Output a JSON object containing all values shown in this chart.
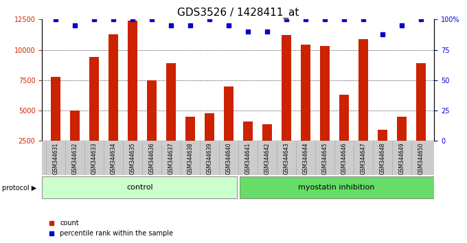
{
  "title": "GDS3526 / 1428411_at",
  "samples": [
    "GSM344631",
    "GSM344632",
    "GSM344633",
    "GSM344634",
    "GSM344635",
    "GSM344636",
    "GSM344637",
    "GSM344638",
    "GSM344639",
    "GSM344640",
    "GSM344641",
    "GSM344642",
    "GSM344643",
    "GSM344644",
    "GSM344645",
    "GSM344646",
    "GSM344647",
    "GSM344648",
    "GSM344649",
    "GSM344650"
  ],
  "bar_values": [
    7800,
    5000,
    9400,
    11300,
    12400,
    7500,
    8900,
    4500,
    4800,
    7000,
    4100,
    3900,
    11200,
    10400,
    10300,
    6300,
    10900,
    3400,
    4500,
    8900
  ],
  "percentile_values": [
    100,
    95,
    100,
    100,
    100,
    100,
    95,
    95,
    100,
    95,
    90,
    90,
    100,
    100,
    100,
    100,
    100,
    88,
    95,
    100
  ],
  "bar_color": "#cc2200",
  "dot_color": "#0000cc",
  "ylim_left": [
    2500,
    12500
  ],
  "ylim_right": [
    0,
    100
  ],
  "yticks_left": [
    2500,
    5000,
    7500,
    10000,
    12500
  ],
  "yticks_right": [
    0,
    25,
    50,
    75,
    100
  ],
  "control_samples": 10,
  "control_label": "control",
  "treatment_label": "myostatin inhibition",
  "protocol_label": "protocol",
  "legend_count": "count",
  "legend_percentile": "percentile rank within the sample",
  "control_bg": "#ccffcc",
  "treatment_bg": "#66dd66",
  "xlabel_area_bg": "#cccccc",
  "title_fontsize": 11,
  "tick_fontsize": 7
}
